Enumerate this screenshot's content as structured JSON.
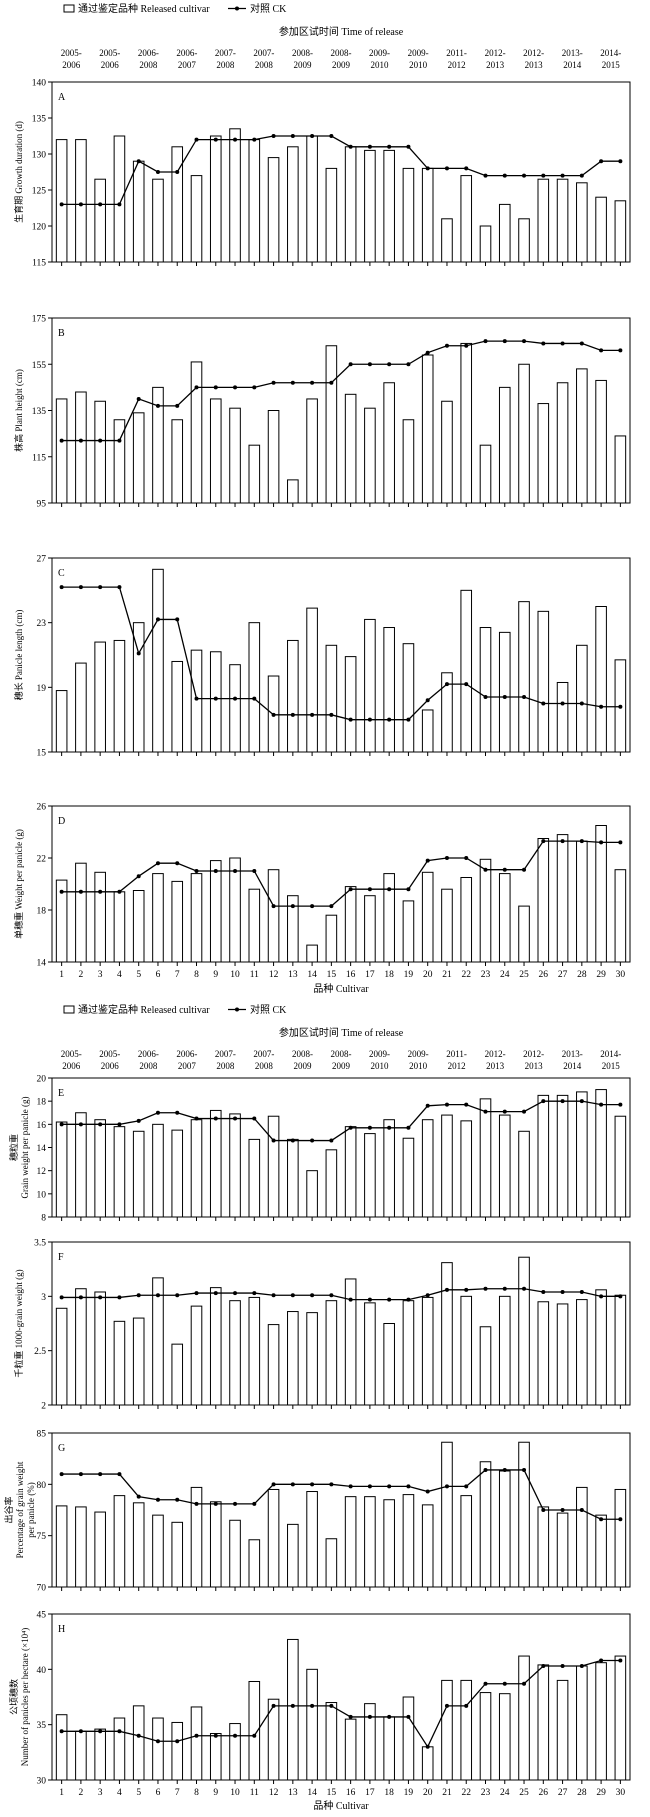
{
  "figure_top": {
    "legend": {
      "bar_label": "通过鉴定品种 Released cultivar",
      "line_label": "对照 CK"
    },
    "release_title": "参加区试时间 Time of release",
    "release_periods": [
      [
        "2005-",
        "2006"
      ],
      [
        "2005-",
        "2006"
      ],
      [
        "2006-",
        "2008"
      ],
      [
        "2006-",
        "2007"
      ],
      [
        "2007-",
        "2008"
      ],
      [
        "2007-",
        "2008"
      ],
      [
        "2008-",
        "2009"
      ],
      [
        "2008-",
        "2009"
      ],
      [
        "2009-",
        "2010"
      ],
      [
        "2009-",
        "2010"
      ],
      [
        "2011-",
        "2012"
      ],
      [
        "2012-",
        "2013"
      ],
      [
        "2012-",
        "2013"
      ],
      [
        "2013-",
        "2014"
      ],
      [
        "2014-",
        "2015"
      ]
    ],
    "xlabel": "品种 Cultivar"
  },
  "figure_bottom": {
    "legend": {
      "bar_label": "通过鉴定品种 Released cultivar",
      "line_label": "对照 CK"
    },
    "release_title": "参加区试时间 Time of release",
    "release_periods": [
      [
        "2005-",
        "2006"
      ],
      [
        "2005-",
        "2006"
      ],
      [
        "2006-",
        "2008"
      ],
      [
        "2006-",
        "2007"
      ],
      [
        "2007-",
        "2008"
      ],
      [
        "2007-",
        "2008"
      ],
      [
        "2008-",
        "2009"
      ],
      [
        "2008-",
        "2009"
      ],
      [
        "2009-",
        "2010"
      ],
      [
        "2009-",
        "2010"
      ],
      [
        "2011-",
        "2012"
      ],
      [
        "2012-",
        "2013"
      ],
      [
        "2012-",
        "2013"
      ],
      [
        "2013-",
        "2014"
      ],
      [
        "2014-",
        "2015"
      ]
    ],
    "xlabel": "品种 Cultivar"
  },
  "chart_data": [
    {
      "type": "bar",
      "panel": "A",
      "ylabel": [
        "生育期 Growth duration (d)"
      ],
      "ylim": [
        115,
        140
      ],
      "yticks": [
        115,
        120,
        125,
        130,
        135,
        140
      ],
      "categories": [
        1,
        2,
        3,
        4,
        5,
        6,
        7,
        8,
        9,
        10,
        11,
        12,
        13,
        14,
        15,
        16,
        17,
        18,
        19,
        20,
        21,
        22,
        23,
        24,
        25,
        26,
        27,
        28,
        29,
        30
      ],
      "series": [
        {
          "name": "通过鉴定品种 Released cultivar",
          "kind": "bar",
          "values": [
            132,
            132,
            126.5,
            132.5,
            129,
            126.5,
            131,
            127,
            132.5,
            133.5,
            132,
            129.5,
            131,
            132.5,
            128,
            131,
            130.5,
            130.5,
            128,
            128,
            121,
            127,
            120,
            123,
            121,
            126.5,
            126.5,
            126,
            124,
            123.5
          ]
        },
        {
          "name": "对照 CK",
          "kind": "line",
          "values": [
            123,
            123,
            123,
            123,
            129,
            127.5,
            127.5,
            132,
            132,
            132,
            132,
            132.5,
            132.5,
            132.5,
            132.5,
            131,
            131,
            131,
            131,
            128,
            128,
            128,
            127,
            127,
            127,
            127,
            127,
            127,
            129,
            129
          ]
        }
      ]
    },
    {
      "type": "bar",
      "panel": "B",
      "ylabel": [
        "株高 Plant height (cm)"
      ],
      "ylim": [
        95,
        175
      ],
      "yticks": [
        95,
        115,
        135,
        155,
        175
      ],
      "categories": [
        1,
        2,
        3,
        4,
        5,
        6,
        7,
        8,
        9,
        10,
        11,
        12,
        13,
        14,
        15,
        16,
        17,
        18,
        19,
        20,
        21,
        22,
        23,
        24,
        25,
        26,
        27,
        28,
        29,
        30
      ],
      "series": [
        {
          "name": "通过鉴定品种 Released cultivar",
          "kind": "bar",
          "values": [
            140,
            143,
            139,
            131,
            134,
            145,
            131,
            156,
            140,
            136,
            120,
            135,
            105,
            140,
            163,
            142,
            136,
            147,
            131,
            159,
            139,
            164,
            120,
            145,
            155,
            138,
            147,
            153,
            148,
            124
          ]
        },
        {
          "name": "对照 CK",
          "kind": "line",
          "values": [
            122,
            122,
            122,
            122,
            140,
            137,
            137,
            145,
            145,
            145,
            145,
            147,
            147,
            147,
            147,
            155,
            155,
            155,
            155,
            160,
            163,
            163,
            165,
            165,
            165,
            164,
            164,
            164,
            161,
            161
          ]
        }
      ]
    },
    {
      "type": "bar",
      "panel": "C",
      "ylabel": [
        "穗长 Panicle length (cm)"
      ],
      "ylim": [
        15,
        27
      ],
      "yticks": [
        15,
        19,
        23,
        27
      ],
      "categories": [
        1,
        2,
        3,
        4,
        5,
        6,
        7,
        8,
        9,
        10,
        11,
        12,
        13,
        14,
        15,
        16,
        17,
        18,
        19,
        20,
        21,
        22,
        23,
        24,
        25,
        26,
        27,
        28,
        29,
        30
      ],
      "series": [
        {
          "name": "通过鉴定品种 Released cultivar",
          "kind": "bar",
          "values": [
            18.8,
            20.5,
            21.8,
            21.9,
            23.0,
            26.3,
            20.6,
            21.3,
            21.2,
            20.4,
            23.0,
            19.7,
            21.9,
            23.9,
            21.6,
            20.9,
            23.2,
            22.7,
            21.7,
            17.6,
            19.9,
            25.0,
            22.7,
            22.4,
            24.3,
            23.7,
            19.3,
            21.6,
            24.0,
            20.7
          ]
        },
        {
          "name": "对照 CK",
          "kind": "line",
          "values": [
            25.2,
            25.2,
            25.2,
            25.2,
            21.1,
            23.2,
            23.2,
            18.3,
            18.3,
            18.3,
            18.3,
            17.3,
            17.3,
            17.3,
            17.3,
            17.0,
            17.0,
            17.0,
            17.0,
            18.2,
            19.2,
            19.2,
            18.4,
            18.4,
            18.4,
            18.0,
            18.0,
            18.0,
            17.8,
            17.8
          ]
        }
      ]
    },
    {
      "type": "bar",
      "panel": "D",
      "ylabel": [
        "单穗重 Weight per panicle (g)"
      ],
      "ylim": [
        14,
        26
      ],
      "yticks": [
        14,
        18,
        22,
        26
      ],
      "categories": [
        1,
        2,
        3,
        4,
        5,
        6,
        7,
        8,
        9,
        10,
        11,
        12,
        13,
        14,
        15,
        16,
        17,
        18,
        19,
        20,
        21,
        22,
        23,
        24,
        25,
        26,
        27,
        28,
        29,
        30
      ],
      "series": [
        {
          "name": "通过鉴定品种 Released cultivar",
          "kind": "bar",
          "values": [
            20.3,
            21.6,
            20.9,
            19.4,
            19.5,
            20.8,
            20.2,
            20.8,
            21.8,
            22.0,
            19.6,
            21.1,
            19.1,
            15.3,
            17.6,
            19.8,
            19.1,
            20.8,
            18.7,
            20.9,
            19.6,
            20.5,
            21.9,
            20.8,
            18.3,
            23.5,
            23.8,
            23.3,
            24.5,
            21.1
          ]
        },
        {
          "name": "对照 CK",
          "kind": "line",
          "values": [
            19.4,
            19.4,
            19.4,
            19.4,
            20.6,
            21.6,
            21.6,
            21.0,
            21.0,
            21.0,
            21.0,
            18.3,
            18.3,
            18.3,
            18.3,
            19.6,
            19.6,
            19.6,
            19.6,
            21.8,
            22.0,
            22.0,
            21.1,
            21.1,
            21.1,
            23.3,
            23.3,
            23.3,
            23.2,
            23.2
          ]
        }
      ]
    },
    {
      "type": "bar",
      "panel": "E",
      "ylabel": [
        "穗粒重",
        "Grain weight per panicle (g)"
      ],
      "ylim": [
        8,
        20
      ],
      "yticks": [
        8,
        10,
        12,
        14,
        16,
        18,
        20
      ],
      "categories": [
        1,
        2,
        3,
        4,
        5,
        6,
        7,
        8,
        9,
        10,
        11,
        12,
        13,
        14,
        15,
        16,
        17,
        18,
        19,
        20,
        21,
        22,
        23,
        24,
        25,
        26,
        27,
        28,
        29,
        30
      ],
      "series": [
        {
          "name": "通过鉴定品种 Released cultivar",
          "kind": "bar",
          "values": [
            16.2,
            17.0,
            16.4,
            15.8,
            15.4,
            16.0,
            15.5,
            16.4,
            17.2,
            16.9,
            14.7,
            16.7,
            14.7,
            12.0,
            13.8,
            15.8,
            15.2,
            16.4,
            14.8,
            16.4,
            16.8,
            16.3,
            18.2,
            16.8,
            15.4,
            18.5,
            18.5,
            18.8,
            19.0,
            16.7
          ]
        },
        {
          "name": "对照 CK",
          "kind": "line",
          "values": [
            16.0,
            16.0,
            16.0,
            16.0,
            16.3,
            17.0,
            17.0,
            16.5,
            16.5,
            16.5,
            16.5,
            14.6,
            14.6,
            14.6,
            14.6,
            15.7,
            15.7,
            15.7,
            15.7,
            17.6,
            17.7,
            17.7,
            17.1,
            17.1,
            17.1,
            18.0,
            18.0,
            18.0,
            17.7,
            17.7
          ]
        }
      ]
    },
    {
      "type": "bar",
      "panel": "F",
      "ylabel": [
        "千粒重 1000-grain weight (g)"
      ],
      "ylim": [
        2,
        3.5
      ],
      "yticks": [
        2,
        2.5,
        3,
        3.5
      ],
      "categories": [
        1,
        2,
        3,
        4,
        5,
        6,
        7,
        8,
        9,
        10,
        11,
        12,
        13,
        14,
        15,
        16,
        17,
        18,
        19,
        20,
        21,
        22,
        23,
        24,
        25,
        26,
        27,
        28,
        29,
        30
      ],
      "series": [
        {
          "name": "通过鉴定品种 Released cultivar",
          "kind": "bar",
          "values": [
            2.89,
            3.07,
            3.04,
            2.77,
            2.8,
            3.17,
            2.56,
            2.91,
            3.08,
            2.96,
            2.99,
            2.74,
            2.86,
            2.85,
            2.96,
            3.16,
            2.94,
            2.75,
            2.96,
            2.99,
            3.31,
            3.0,
            2.72,
            3.0,
            3.36,
            2.95,
            2.93,
            2.97,
            3.06,
            3.01
          ]
        },
        {
          "name": "对照 CK",
          "kind": "line",
          "values": [
            2.99,
            2.99,
            2.99,
            2.99,
            3.01,
            3.01,
            3.01,
            3.03,
            3.03,
            3.03,
            3.03,
            3.01,
            3.01,
            3.01,
            3.01,
            2.97,
            2.97,
            2.97,
            2.97,
            3.01,
            3.06,
            3.06,
            3.07,
            3.07,
            3.07,
            3.04,
            3.04,
            3.04,
            3.0,
            3.0
          ]
        }
      ]
    },
    {
      "type": "bar",
      "panel": "G",
      "ylabel": [
        "出谷率",
        "Percentage of grain weight",
        "per panicle (%)"
      ],
      "ylim": [
        70,
        85
      ],
      "yticks": [
        70,
        75,
        80,
        85
      ],
      "categories": [
        1,
        2,
        3,
        4,
        5,
        6,
        7,
        8,
        9,
        10,
        11,
        12,
        13,
        14,
        15,
        16,
        17,
        18,
        19,
        20,
        21,
        22,
        23,
        24,
        25,
        26,
        27,
        28,
        29,
        30
      ],
      "series": [
        {
          "name": "通过鉴定品种 Released cultivar",
          "kind": "bar",
          "values": [
            77.9,
            77.8,
            77.3,
            78.9,
            78.2,
            77.0,
            76.3,
            79.7,
            78.3,
            76.5,
            74.6,
            79.5,
            76.1,
            79.3,
            74.7,
            78.8,
            78.8,
            78.5,
            79.0,
            78.0,
            84.1,
            78.9,
            82.2,
            81.3,
            84.1,
            77.8,
            77.2,
            79.7,
            77.0,
            79.5
          ]
        },
        {
          "name": "对照 CK",
          "kind": "line",
          "values": [
            81.0,
            81.0,
            81.0,
            81.0,
            78.8,
            78.5,
            78.5,
            78.1,
            78.1,
            78.1,
            78.1,
            80.0,
            80.0,
            80.0,
            80.0,
            79.8,
            79.8,
            79.8,
            79.8,
            79.3,
            79.8,
            79.8,
            81.4,
            81.4,
            81.4,
            77.5,
            77.5,
            77.5,
            76.6,
            76.6
          ]
        }
      ]
    },
    {
      "type": "bar",
      "panel": "H",
      "ylabel": [
        "公顷穗数",
        "Number of panicles per hectare (×10⁴)"
      ],
      "ylim": [
        30,
        45
      ],
      "yticks": [
        30,
        35,
        40,
        45
      ],
      "categories": [
        1,
        2,
        3,
        4,
        5,
        6,
        7,
        8,
        9,
        10,
        11,
        12,
        13,
        14,
        15,
        16,
        17,
        18,
        19,
        20,
        21,
        22,
        23,
        24,
        25,
        26,
        27,
        28,
        29,
        30
      ],
      "series": [
        {
          "name": "通过鉴定品种 Released cultivar",
          "kind": "bar",
          "values": [
            35.9,
            34.4,
            34.6,
            35.6,
            36.7,
            35.6,
            35.2,
            36.6,
            34.2,
            35.1,
            38.9,
            37.3,
            42.7,
            40.0,
            37.0,
            35.5,
            36.9,
            35.7,
            37.5,
            33.0,
            39.0,
            39.0,
            37.9,
            37.8,
            41.2,
            40.4,
            39.0,
            40.3,
            40.6,
            41.2
          ]
        },
        {
          "name": "对照 CK",
          "kind": "line",
          "values": [
            34.4,
            34.4,
            34.4,
            34.4,
            34.0,
            33.5,
            33.5,
            34.0,
            34.0,
            34.0,
            34.0,
            36.7,
            36.7,
            36.7,
            36.7,
            35.7,
            35.7,
            35.7,
            35.7,
            33.0,
            36.7,
            36.7,
            38.7,
            38.7,
            38.7,
            40.3,
            40.3,
            40.3,
            40.8,
            40.8
          ]
        }
      ]
    }
  ]
}
